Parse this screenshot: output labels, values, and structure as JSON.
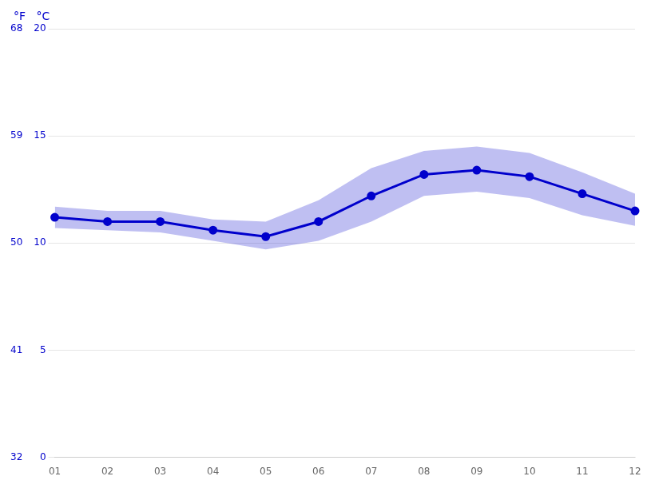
{
  "chart_data": {
    "type": "line",
    "categories": [
      "01",
      "02",
      "03",
      "04",
      "05",
      "06",
      "07",
      "08",
      "09",
      "10",
      "11",
      "12"
    ],
    "values": [
      11.2,
      11.0,
      11.0,
      10.6,
      10.3,
      11.0,
      12.2,
      13.2,
      13.4,
      13.1,
      12.3,
      11.5
    ],
    "upper": [
      11.7,
      11.5,
      11.5,
      11.1,
      11.0,
      12.0,
      13.5,
      14.3,
      14.5,
      14.2,
      13.3,
      12.3
    ],
    "lower": [
      10.7,
      10.6,
      10.5,
      10.1,
      9.7,
      10.1,
      11.0,
      12.2,
      12.4,
      12.1,
      11.3,
      10.8
    ],
    "color": "#0000cc",
    "marker": "circle",
    "ylabel": "°C",
    "y2label": "°F",
    "ylim": [
      0,
      20
    ],
    "yticks": [
      0,
      5,
      10,
      15,
      20
    ],
    "y2lim": [
      32,
      68
    ],
    "y2ticks": [
      32,
      41,
      50,
      59,
      68
    ],
    "grid": true
  }
}
